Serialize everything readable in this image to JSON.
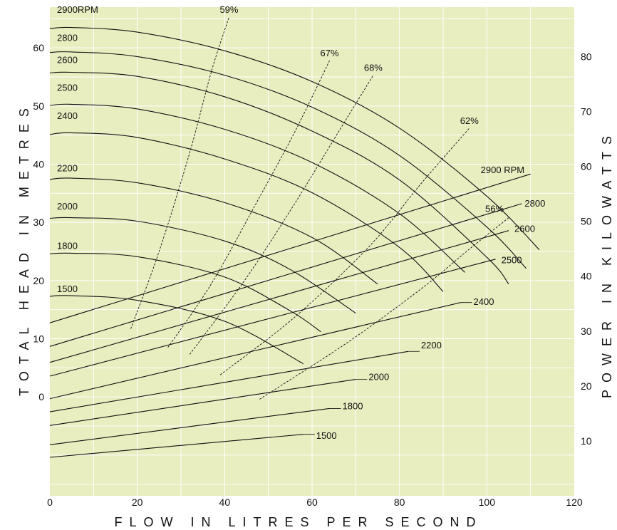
{
  "chart_data": {
    "type": "line",
    "title": "",
    "xlabel": "FLOW IN LITRES PER SECOND",
    "ylabel_left": "TOTAL HEAD IN METRES",
    "ylabel_right": "POWER IN KILOWATTS",
    "xlim": [
      0,
      120
    ],
    "x_ticks": [
      0,
      20,
      40,
      60,
      80,
      100,
      120
    ],
    "y_left_range": [
      -17,
      67
    ],
    "y_left_ticks": [
      0,
      10,
      20,
      30,
      40,
      50,
      60
    ],
    "y_right_range": [
      0,
      89
    ],
    "y_right_ticks": [
      10,
      20,
      30,
      40,
      50,
      60,
      70,
      80
    ],
    "grid": true,
    "colors": {
      "plot_bg": "#e8eec0",
      "grid": "#ffffff",
      "line": "#111111"
    },
    "head_curves": [
      {
        "label": "2900RPM",
        "points": [
          [
            0,
            63.3
          ],
          [
            5,
            63.5
          ],
          [
            20,
            62.7
          ],
          [
            40,
            59.5
          ],
          [
            60,
            54.2
          ],
          [
            80,
            46.2
          ],
          [
            100,
            34.5
          ],
          [
            112,
            25.3
          ]
        ]
      },
      {
        "label": "2800",
        "points": [
          [
            0,
            59.2
          ],
          [
            5,
            59.3
          ],
          [
            20,
            58.5
          ],
          [
            40,
            55.3
          ],
          [
            60,
            49.8
          ],
          [
            80,
            41.5
          ],
          [
            100,
            29.2
          ],
          [
            109,
            22.1
          ]
        ]
      },
      {
        "label": "2600",
        "points": [
          [
            0,
            55.7
          ],
          [
            5,
            55.8
          ],
          [
            20,
            55.1
          ],
          [
            40,
            51.6
          ],
          [
            60,
            45.7
          ],
          [
            80,
            37.3
          ],
          [
            100,
            24.0
          ],
          [
            105,
            19.4
          ]
        ]
      },
      {
        "label": "2500",
        "points": [
          [
            0,
            50.1
          ],
          [
            5,
            50.3
          ],
          [
            20,
            49.5
          ],
          [
            40,
            46.0
          ],
          [
            60,
            40.3
          ],
          [
            80,
            31.5
          ],
          [
            95,
            21.4
          ]
        ]
      },
      {
        "label": "2400",
        "points": [
          [
            0,
            45.1
          ],
          [
            5,
            45.4
          ],
          [
            20,
            44.6
          ],
          [
            40,
            40.9
          ],
          [
            60,
            35.1
          ],
          [
            80,
            25.7
          ],
          [
            90,
            18.1
          ]
        ]
      },
      {
        "label": "2200",
        "points": [
          [
            0,
            37.4
          ],
          [
            5,
            37.6
          ],
          [
            20,
            36.8
          ],
          [
            40,
            33.4
          ],
          [
            60,
            27.4
          ],
          [
            75,
            19.4
          ]
        ]
      },
      {
        "label": "2000",
        "points": [
          [
            0,
            30.7
          ],
          [
            5,
            30.8
          ],
          [
            20,
            30.2
          ],
          [
            40,
            26.8
          ],
          [
            55,
            21.9
          ],
          [
            70,
            14.4
          ]
        ]
      },
      {
        "label": "1800",
        "points": [
          [
            0,
            24.6
          ],
          [
            5,
            24.7
          ],
          [
            20,
            24.1
          ],
          [
            40,
            20.6
          ],
          [
            55,
            14.8
          ],
          [
            62,
            11.2
          ]
        ]
      },
      {
        "label": "1500",
        "points": [
          [
            0,
            17.3
          ],
          [
            5,
            17.4
          ],
          [
            20,
            16.6
          ],
          [
            40,
            13.0
          ],
          [
            58,
            5.7
          ]
        ]
      }
    ],
    "head_label_values": [
      66.0,
      61.2,
      57.4,
      52.6,
      47.8,
      38.8,
      32.2,
      25.4,
      18.0
    ],
    "efficiency_curves": [
      {
        "label": "59%",
        "points": [
          [
            18.5,
            11.7
          ],
          [
            25,
            25.0
          ],
          [
            32,
            42.0
          ],
          [
            37,
            56.0
          ],
          [
            41,
            65.3
          ]
        ]
      },
      {
        "label": "67%",
        "points": [
          [
            27,
            8.5
          ],
          [
            37,
            19.5
          ],
          [
            47,
            33.0
          ],
          [
            56,
            45.5
          ],
          [
            64,
            57.8
          ]
        ]
      },
      {
        "label": "68%",
        "points": [
          [
            32,
            7.3
          ],
          [
            45,
            20.5
          ],
          [
            56,
            33.2
          ],
          [
            66,
            45.5
          ],
          [
            74,
            55.3
          ]
        ]
      },
      {
        "label": "62%",
        "points": [
          [
            39,
            3.8
          ],
          [
            56,
            13.7
          ],
          [
            73,
            25.8
          ],
          [
            85,
            36.7
          ],
          [
            96,
            46.2
          ]
        ]
      },
      {
        "label": "56%",
        "points": [
          [
            48,
            -0.4
          ],
          [
            68,
            9.3
          ],
          [
            85,
            18.6
          ],
          [
            96,
            25.4
          ],
          [
            105,
            30.8
          ]
        ]
      }
    ],
    "power_curves": [
      {
        "label": "2900 RPM",
        "points": [
          [
            0,
            31.5
          ],
          [
            110,
            58.6
          ]
        ]
      },
      {
        "label": "2800",
        "points": [
          [
            0,
            27.2
          ],
          [
            108,
            53.2
          ]
        ]
      },
      {
        "label": "2600",
        "points": [
          [
            0,
            24.3
          ],
          [
            105,
            48.3
          ]
        ]
      },
      {
        "label": "2500",
        "points": [
          [
            0,
            21.8
          ],
          [
            102,
            43.1
          ]
        ]
      },
      {
        "label": "2400",
        "points": [
          [
            0,
            17.7
          ],
          [
            94,
            35.2
          ]
        ]
      },
      {
        "label": "2200",
        "points": [
          [
            0,
            15.3
          ],
          [
            82,
            26.3
          ]
        ]
      },
      {
        "label": "2000",
        "points": [
          [
            0,
            12.8
          ],
          [
            70,
            21.2
          ]
        ]
      },
      {
        "label": "1800",
        "points": [
          [
            0,
            9.3
          ],
          [
            64,
            15.9
          ]
        ]
      },
      {
        "label": "1500",
        "points": [
          [
            0,
            7.0
          ],
          [
            58,
            11.2
          ]
        ]
      }
    ],
    "power_label_values": [
      59.4,
      53.3,
      48.7,
      43.0,
      35.4,
      27.5,
      21.7,
      16.4,
      11.0
    ]
  }
}
